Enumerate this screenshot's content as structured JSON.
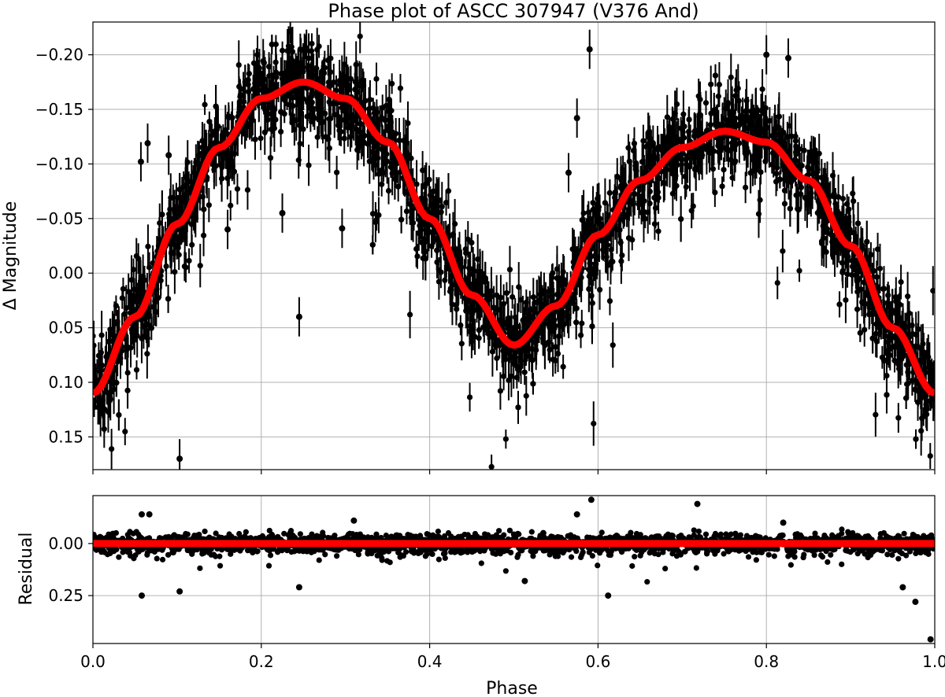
{
  "chart_data": [
    {
      "type": "scatter",
      "panel": "main",
      "title": "Phase plot of ASCC 307947 (V376 And)",
      "xlabel": "",
      "ylabel": "Δ Magnitude",
      "xlim": [
        0.0,
        1.0
      ],
      "ylim": [
        0.18,
        -0.23
      ],
      "y_inverted": true,
      "grid": true,
      "x_ticks": [
        0.0,
        0.2,
        0.4,
        0.6,
        0.8,
        1.0
      ],
      "y_ticks": [
        -0.2,
        -0.15,
        -0.1,
        -0.05,
        0.0,
        0.05,
        0.1,
        0.15
      ],
      "y_tick_labels": [
        "−0.20",
        "−0.15",
        "−0.10",
        "−0.05",
        "0.00",
        "0.05",
        "0.10",
        "0.15"
      ],
      "series": [
        {
          "kind": "points-with-errorbars",
          "color": "#000000",
          "approx_points": 2500,
          "scatter_sd": 0.022,
          "x": [
            0.0,
            0.05,
            0.1,
            0.15,
            0.2,
            0.25,
            0.3,
            0.35,
            0.4,
            0.45,
            0.5,
            0.55,
            0.6,
            0.65,
            0.7,
            0.75,
            0.8,
            0.85,
            0.9,
            0.95,
            1.0
          ],
          "y": [
            0.11,
            0.04,
            -0.045,
            -0.115,
            -0.16,
            -0.175,
            -0.16,
            -0.12,
            -0.05,
            0.02,
            0.066,
            0.03,
            -0.035,
            -0.085,
            -0.115,
            -0.13,
            -0.12,
            -0.085,
            -0.025,
            0.05,
            0.11
          ],
          "outliers": [
            {
              "x": 0.057,
              "y": -0.102
            },
            {
              "x": 0.065,
              "y": -0.119
            },
            {
              "x": 0.09,
              "y": -0.108
            },
            {
              "x": 0.245,
              "y": 0.04
            },
            {
              "x": 0.296,
              "y": -0.041
            },
            {
              "x": 0.225,
              "y": -0.055
            },
            {
              "x": 0.575,
              "y": -0.142
            },
            {
              "x": 0.59,
              "y": -0.205
            },
            {
              "x": 0.565,
              "y": -0.092
            },
            {
              "x": 0.8,
              "y": -0.2
            },
            {
              "x": 0.826,
              "y": -0.197
            },
            {
              "x": 0.103,
              "y": 0.17
            },
            {
              "x": 0.16,
              "y": -0.04
            },
            {
              "x": 0.94,
              "y": 0.08
            }
          ]
        },
        {
          "kind": "model-line",
          "color": "#ff0000",
          "x": [
            0.0,
            0.05,
            0.1,
            0.15,
            0.2,
            0.25,
            0.3,
            0.35,
            0.4,
            0.45,
            0.5,
            0.55,
            0.6,
            0.65,
            0.7,
            0.75,
            0.8,
            0.85,
            0.9,
            0.95,
            1.0
          ],
          "y": [
            0.11,
            0.04,
            -0.045,
            -0.115,
            -0.16,
            -0.175,
            -0.16,
            -0.12,
            -0.05,
            0.02,
            0.066,
            0.03,
            -0.035,
            -0.085,
            -0.115,
            -0.13,
            -0.12,
            -0.085,
            -0.025,
            0.05,
            0.11
          ]
        }
      ]
    },
    {
      "type": "scatter",
      "panel": "residual",
      "title": "",
      "xlabel": "Phase",
      "ylabel": "Residual",
      "xlim": [
        0.0,
        1.0
      ],
      "ylim": [
        0.48,
        -0.23
      ],
      "y_inverted": true,
      "grid": true,
      "x_ticks": [
        0.0,
        0.2,
        0.4,
        0.6,
        0.8,
        1.0
      ],
      "x_tick_labels": [
        "0.0",
        "0.2",
        "0.4",
        "0.6",
        "0.8",
        "1.0"
      ],
      "y_ticks": [
        0.0,
        0.25
      ],
      "y_tick_labels": [
        "0.00",
        "0.25"
      ],
      "series": [
        {
          "kind": "points",
          "color": "#000000",
          "approx_points": 2500,
          "scatter_sd": 0.022,
          "outliers": [
            {
              "x": 0.058,
              "y": -0.14
            },
            {
              "x": 0.067,
              "y": -0.14
            },
            {
              "x": 0.103,
              "y": 0.23
            },
            {
              "x": 0.058,
              "y": 0.25
            },
            {
              "x": 0.245,
              "y": 0.21
            },
            {
              "x": 0.31,
              "y": -0.11
            },
            {
              "x": 0.535,
              "y": -0.05
            },
            {
              "x": 0.575,
              "y": -0.14
            },
            {
              "x": 0.592,
              "y": -0.21
            },
            {
              "x": 0.612,
              "y": 0.25
            },
            {
              "x": 0.718,
              "y": -0.19
            },
            {
              "x": 0.82,
              "y": -0.1
            },
            {
              "x": 0.962,
              "y": 0.21
            },
            {
              "x": 0.977,
              "y": 0.28
            },
            {
              "x": 0.995,
              "y": 0.46
            },
            {
              "x": 0.513,
              "y": 0.18
            }
          ]
        },
        {
          "kind": "zero-line",
          "color": "#ff0000",
          "y": 0.0
        }
      ]
    }
  ]
}
